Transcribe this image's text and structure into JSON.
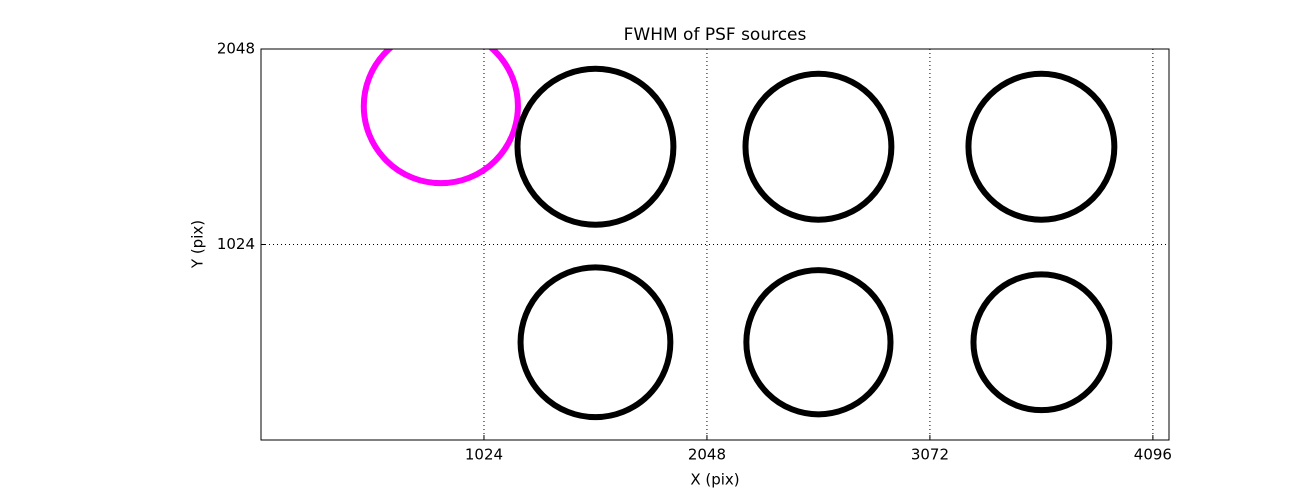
{
  "chart_data": {
    "type": "scatter",
    "title": "FWHM of PSF sources",
    "x_label": "X (pix)",
    "y_label": "Y (pix)",
    "x": [
      826,
      1536,
      2560,
      3584,
      1536,
      2560,
      3584
    ],
    "y": [
      1749,
      1536,
      1536,
      1536,
      512,
      512,
      512
    ],
    "sizes": [
      354,
      358,
      335,
      335,
      344,
      331,
      312
    ],
    "colors": [
      "#ff00ff",
      "#000000",
      "#000000",
      "#000000",
      "#000000",
      "#000000",
      "#000000"
    ],
    "xlim": [
      0,
      4170
    ],
    "ylim": [
      0,
      2048
    ],
    "xticks": [
      1024,
      2048,
      3072,
      4096
    ],
    "yticks": [
      1024,
      2048
    ],
    "grid": true
  }
}
